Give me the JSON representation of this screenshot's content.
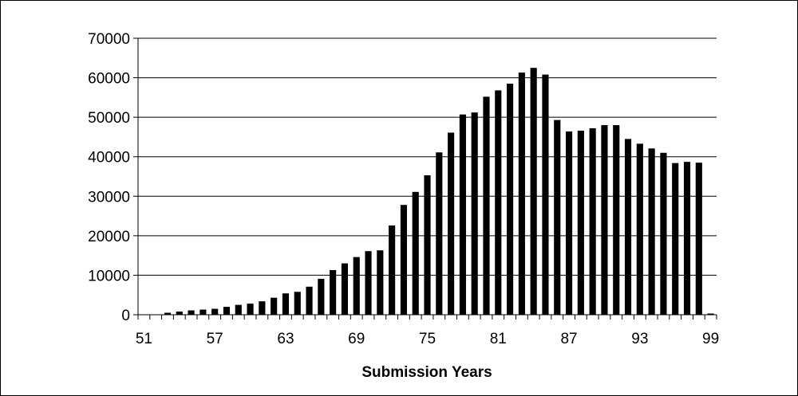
{
  "chart_data": {
    "type": "bar",
    "title": "",
    "xlabel": "Submission Years",
    "ylabel": "",
    "ylim": [
      0,
      70000
    ],
    "yticks": [
      0,
      10000,
      20000,
      30000,
      40000,
      50000,
      60000,
      70000
    ],
    "xlim": [
      51,
      100
    ],
    "xticks": [
      51,
      57,
      63,
      69,
      75,
      81,
      87,
      93,
      99
    ],
    "grid": "horizontal",
    "legend": "none",
    "bar_color": "#000000",
    "x": [
      53,
      54,
      55,
      56,
      57,
      58,
      59,
      60,
      61,
      62,
      63,
      64,
      65,
      66,
      67,
      68,
      69,
      70,
      71,
      72,
      73,
      74,
      75,
      76,
      77,
      78,
      79,
      80,
      81,
      82,
      83,
      84,
      85,
      86,
      87,
      88,
      89,
      90,
      91,
      92,
      93,
      94,
      95,
      96,
      97,
      98,
      99
    ],
    "values": [
      500,
      800,
      1100,
      1300,
      1500,
      2000,
      2500,
      2800,
      3400,
      4300,
      5400,
      5800,
      7100,
      9100,
      11300,
      13000,
      14600,
      16100,
      16300,
      22600,
      27800,
      31100,
      35300,
      41100,
      46100,
      50700,
      51200,
      55200,
      56800,
      58500,
      61300,
      62500,
      60800,
      49300,
      46400,
      46600,
      47200,
      48000,
      48000,
      44500,
      43300,
      42100,
      41000,
      38400,
      38700,
      38500,
      300
    ]
  }
}
